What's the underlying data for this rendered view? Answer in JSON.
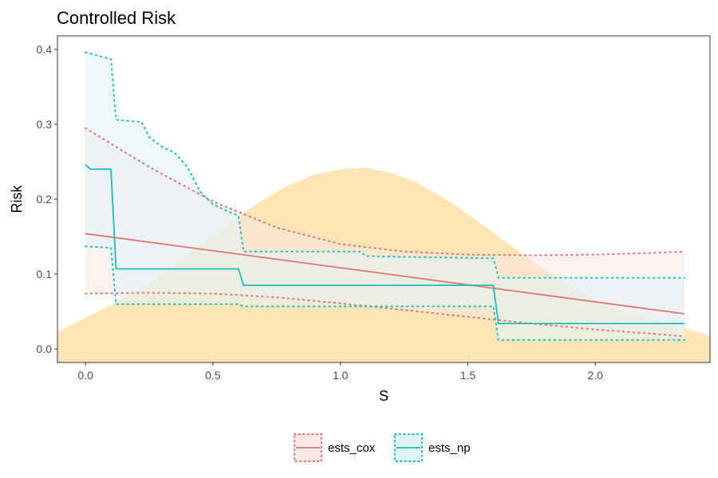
{
  "chart_data": {
    "type": "line",
    "title": "Controlled Risk",
    "xlabel": "S",
    "ylabel": "Risk",
    "xlim": [
      -0.11,
      2.45
    ],
    "ylim": [
      -0.018,
      0.418
    ],
    "x_ticks": [
      0.0,
      0.5,
      1.0,
      1.5,
      2.0
    ],
    "x_tick_labels": [
      "0.0",
      "0.5",
      "1.0",
      "1.5",
      "2.0"
    ],
    "y_ticks": [
      0.0,
      0.1,
      0.2,
      0.3,
      0.4
    ],
    "y_tick_labels": [
      "0.0",
      "0.1",
      "0.2",
      "0.3",
      "0.4"
    ],
    "grid": false,
    "legend_position": "bottom",
    "density": {
      "color": "#fde2ad",
      "x": [
        -0.11,
        0.0,
        0.1,
        0.2,
        0.3,
        0.4,
        0.5,
        0.6,
        0.7,
        0.8,
        0.9,
        1.0,
        1.1,
        1.2,
        1.3,
        1.4,
        1.5,
        1.6,
        1.7,
        1.8,
        1.9,
        2.0,
        2.1,
        2.2,
        2.3,
        2.45
      ],
      "y": [
        0.022,
        0.042,
        0.058,
        0.077,
        0.1,
        0.126,
        0.152,
        0.177,
        0.2,
        0.219,
        0.233,
        0.24,
        0.242,
        0.235,
        0.222,
        0.203,
        0.18,
        0.155,
        0.13,
        0.106,
        0.083,
        0.065,
        0.052,
        0.042,
        0.032,
        0.018
      ]
    },
    "series": [
      {
        "name": "ests_cox",
        "color": "#e0756e",
        "fill": "#fde8e6",
        "step": false,
        "x": [
          0.0,
          2.35
        ],
        "y": [
          0.154,
          0.047
        ],
        "lower": {
          "x": [
            0.0,
            0.25,
            0.5,
            0.75,
            1.0,
            1.25,
            1.5,
            1.75,
            2.0,
            2.2,
            2.35
          ],
          "y": [
            0.074,
            0.075,
            0.074,
            0.069,
            0.061,
            0.052,
            0.043,
            0.034,
            0.026,
            0.021,
            0.017
          ]
        },
        "upper": {
          "x": [
            0.0,
            0.25,
            0.5,
            0.75,
            1.0,
            1.25,
            1.5,
            1.75,
            2.0,
            2.2,
            2.35
          ],
          "y": [
            0.295,
            0.243,
            0.197,
            0.162,
            0.14,
            0.13,
            0.126,
            0.125,
            0.126,
            0.128,
            0.13
          ]
        }
      },
      {
        "name": "ests_np",
        "color": "#1dbdbd",
        "fill": "#dff4f7",
        "step": true,
        "x": [
          0.0,
          0.02,
          0.1,
          0.12,
          0.6,
          0.62,
          1.6,
          1.62,
          2.35
        ],
        "y": [
          0.246,
          0.24,
          0.24,
          0.107,
          0.107,
          0.085,
          0.085,
          0.034,
          0.034
        ],
        "lower": {
          "x": [
            0.0,
            0.1,
            0.12,
            0.6,
            0.62,
            1.6,
            1.62,
            2.35
          ],
          "y": [
            0.137,
            0.135,
            0.06,
            0.06,
            0.057,
            0.057,
            0.012,
            0.012
          ]
        },
        "upper": {
          "x": [
            0.0,
            0.1,
            0.12,
            0.22,
            0.25,
            0.3,
            0.35,
            0.4,
            0.45,
            0.5,
            0.55,
            0.6,
            0.62,
            1.08,
            1.1,
            1.6,
            1.62,
            2.35
          ],
          "y": [
            0.396,
            0.387,
            0.306,
            0.303,
            0.283,
            0.27,
            0.262,
            0.243,
            0.21,
            0.193,
            0.185,
            0.178,
            0.13,
            0.13,
            0.124,
            0.121,
            0.095,
            0.095
          ]
        }
      }
    ]
  }
}
